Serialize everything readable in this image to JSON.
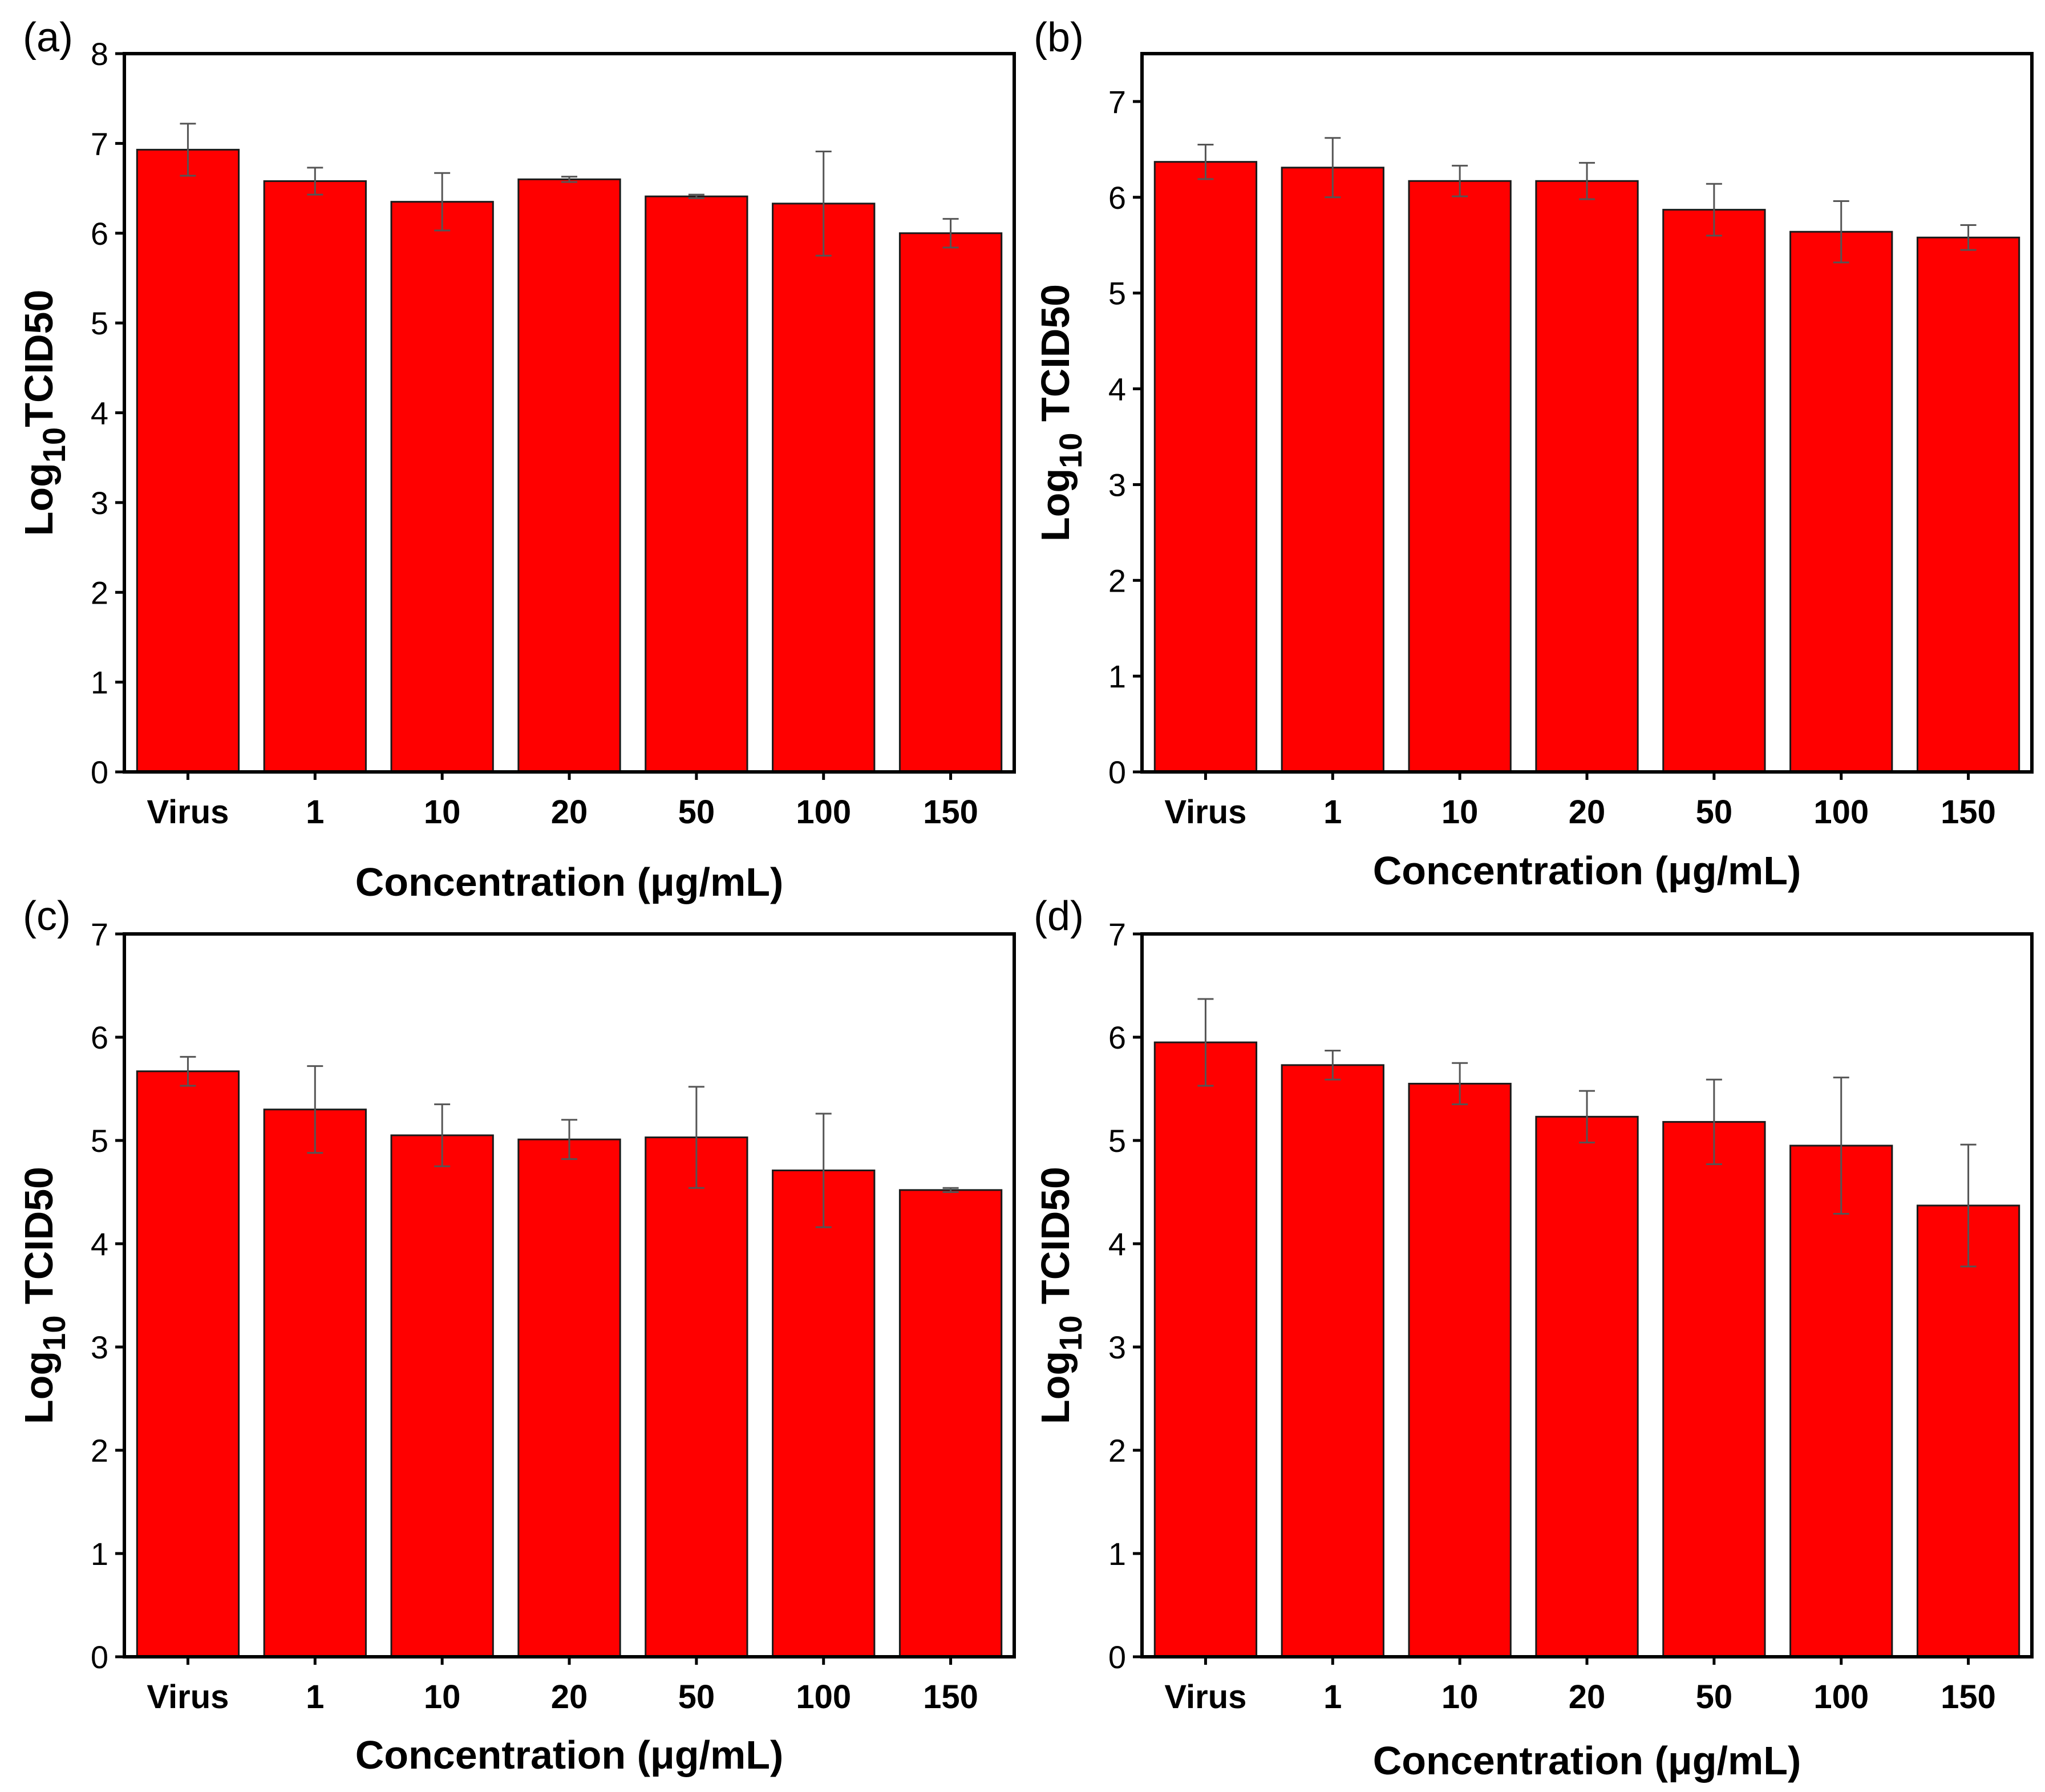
{
  "figure": {
    "bar_color": "#ff0000",
    "bar_edge_color": "#1a1a1a",
    "error_color": "#555555"
  },
  "chart_data": [
    {
      "type": "bar",
      "panel": "(a)",
      "categories": [
        "Virus",
        "1",
        "10",
        "20",
        "50",
        "100",
        "150"
      ],
      "values": [
        6.93,
        6.58,
        6.35,
        6.6,
        6.41,
        6.33,
        6.0
      ],
      "errors": [
        0.29,
        0.15,
        0.32,
        0.03,
        0.02,
        0.58,
        0.16
      ],
      "xlabel": "Concentration (μg/mL)",
      "ylabel": "Log10TCID50",
      "ylabel_parts": [
        "Log",
        "10",
        "TCID50"
      ],
      "ylim": [
        0,
        8
      ],
      "yticks": [
        0,
        1,
        2,
        3,
        4,
        5,
        6,
        7,
        8
      ],
      "grid": false
    },
    {
      "type": "bar",
      "panel": "(b)",
      "categories": [
        "Virus",
        "1",
        "10",
        "20",
        "50",
        "100",
        "150"
      ],
      "values": [
        6.37,
        6.31,
        6.17,
        6.17,
        5.87,
        5.64,
        5.58
      ],
      "errors": [
        0.18,
        0.31,
        0.16,
        0.19,
        0.27,
        0.32,
        0.13
      ],
      "xlabel": "Concentration (μg/mL)",
      "ylabel": "Log10 TCID50",
      "ylabel_parts": [
        "Log",
        "10",
        " TCID50"
      ],
      "ylim": [
        0,
        7.5
      ],
      "yticks": [
        0,
        1,
        2,
        3,
        4,
        5,
        6,
        7
      ],
      "grid": false
    },
    {
      "type": "bar",
      "panel": "(c)",
      "categories": [
        "Virus",
        "1",
        "10",
        "20",
        "50",
        "100",
        "150"
      ],
      "values": [
        5.67,
        5.3,
        5.05,
        5.01,
        5.03,
        4.71,
        4.52
      ],
      "errors": [
        0.14,
        0.42,
        0.3,
        0.19,
        0.49,
        0.55,
        0.02
      ],
      "xlabel": "Concentration (μg/mL)",
      "ylabel": "Log10 TCID50",
      "ylabel_parts": [
        "Log",
        "10",
        " TCID50"
      ],
      "ylim": [
        0,
        7
      ],
      "yticks": [
        0,
        1,
        2,
        3,
        4,
        5,
        6,
        7
      ],
      "grid": false
    },
    {
      "type": "bar",
      "panel": "(d)",
      "categories": [
        "Virus",
        "1",
        "10",
        "20",
        "50",
        "100",
        "150"
      ],
      "values": [
        5.95,
        5.73,
        5.55,
        5.23,
        5.18,
        4.95,
        4.37
      ],
      "errors": [
        0.42,
        0.14,
        0.2,
        0.25,
        0.41,
        0.66,
        0.59
      ],
      "xlabel": "Concentration (μg/mL)",
      "ylabel": "Log10 TCID50",
      "ylabel_parts": [
        "Log",
        "10",
        " TCID50"
      ],
      "ylim": [
        0,
        7
      ],
      "yticks": [
        0,
        1,
        2,
        3,
        4,
        5,
        6,
        7
      ],
      "grid": false
    }
  ]
}
